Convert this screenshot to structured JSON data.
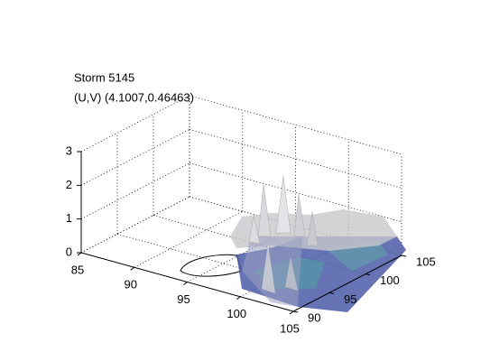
{
  "chart_data": {
    "type": "3d-isosurface",
    "title": "Storm 5145",
    "subtitle": "(U,V) (4.1007,0.46463)",
    "xlim": [
      85,
      105
    ],
    "ylim": [
      90,
      105
    ],
    "zlim": [
      0,
      3
    ],
    "xticks": [
      85,
      90,
      95,
      100,
      105
    ],
    "yticks": [
      90,
      95,
      100,
      105
    ],
    "zticks": [
      0,
      1,
      2,
      3
    ],
    "grid": true
  }
}
